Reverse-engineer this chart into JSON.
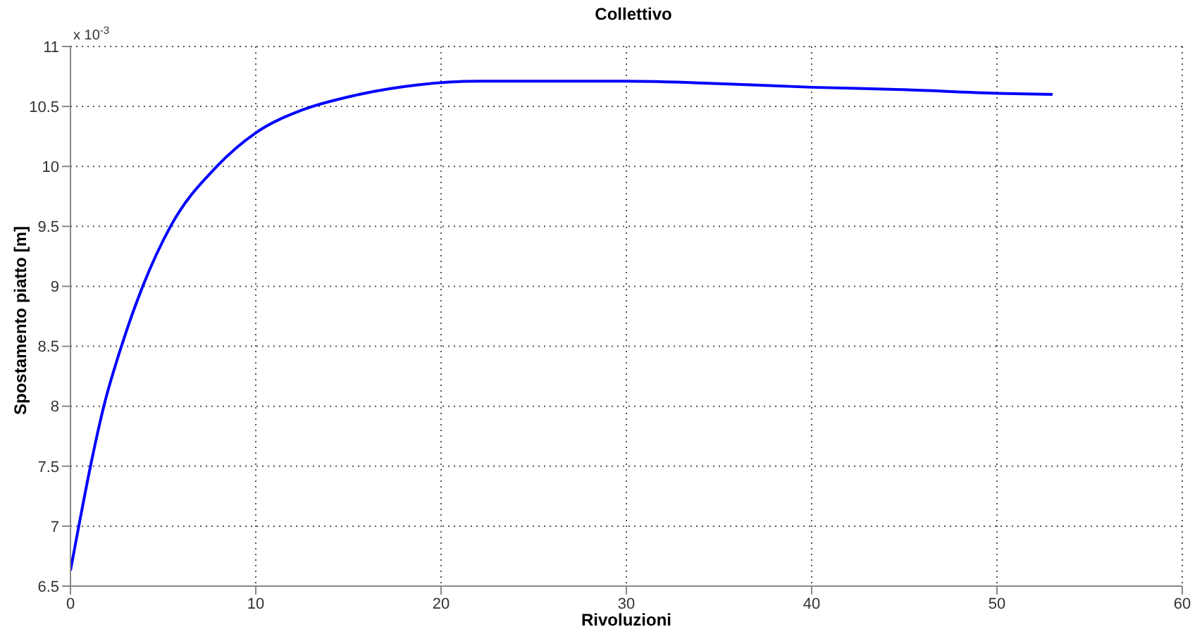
{
  "chart_data": {
    "type": "line",
    "title": "Collettivo",
    "xlabel": "Rivoluzioni",
    "ylabel": "Spostamento piatto [m]",
    "annotations": [
      "x 10$^{-3}$"
    ],
    "x": [
      0,
      0.45,
      1.08,
      1.8,
      2.75,
      3.9,
      5.4,
      7.9,
      10,
      12.5,
      15,
      18.75,
      22,
      26,
      30,
      35,
      40,
      45,
      50,
      53
    ],
    "series": [
      {
        "color": "#0000ff",
        "values": [
          6.63,
          7.0,
          7.5,
          8.0,
          8.5,
          9.0,
          9.5,
          10.0,
          10.28,
          10.47,
          10.58,
          10.68,
          10.71,
          10.71,
          10.71,
          10.69,
          10.66,
          10.64,
          10.61,
          10.6
        ]
      }
    ],
    "xlim": [
      0,
      60
    ],
    "xticks": [
      0,
      10,
      20,
      30,
      40,
      50,
      60
    ],
    "ylim": [
      6.5,
      11
    ],
    "yticks": [
      6.5,
      7,
      7.5,
      8,
      8.5,
      9,
      9.5,
      10,
      10.5,
      11
    ],
    "grid": true,
    "marker": "none",
    "line_style": "solid"
  }
}
